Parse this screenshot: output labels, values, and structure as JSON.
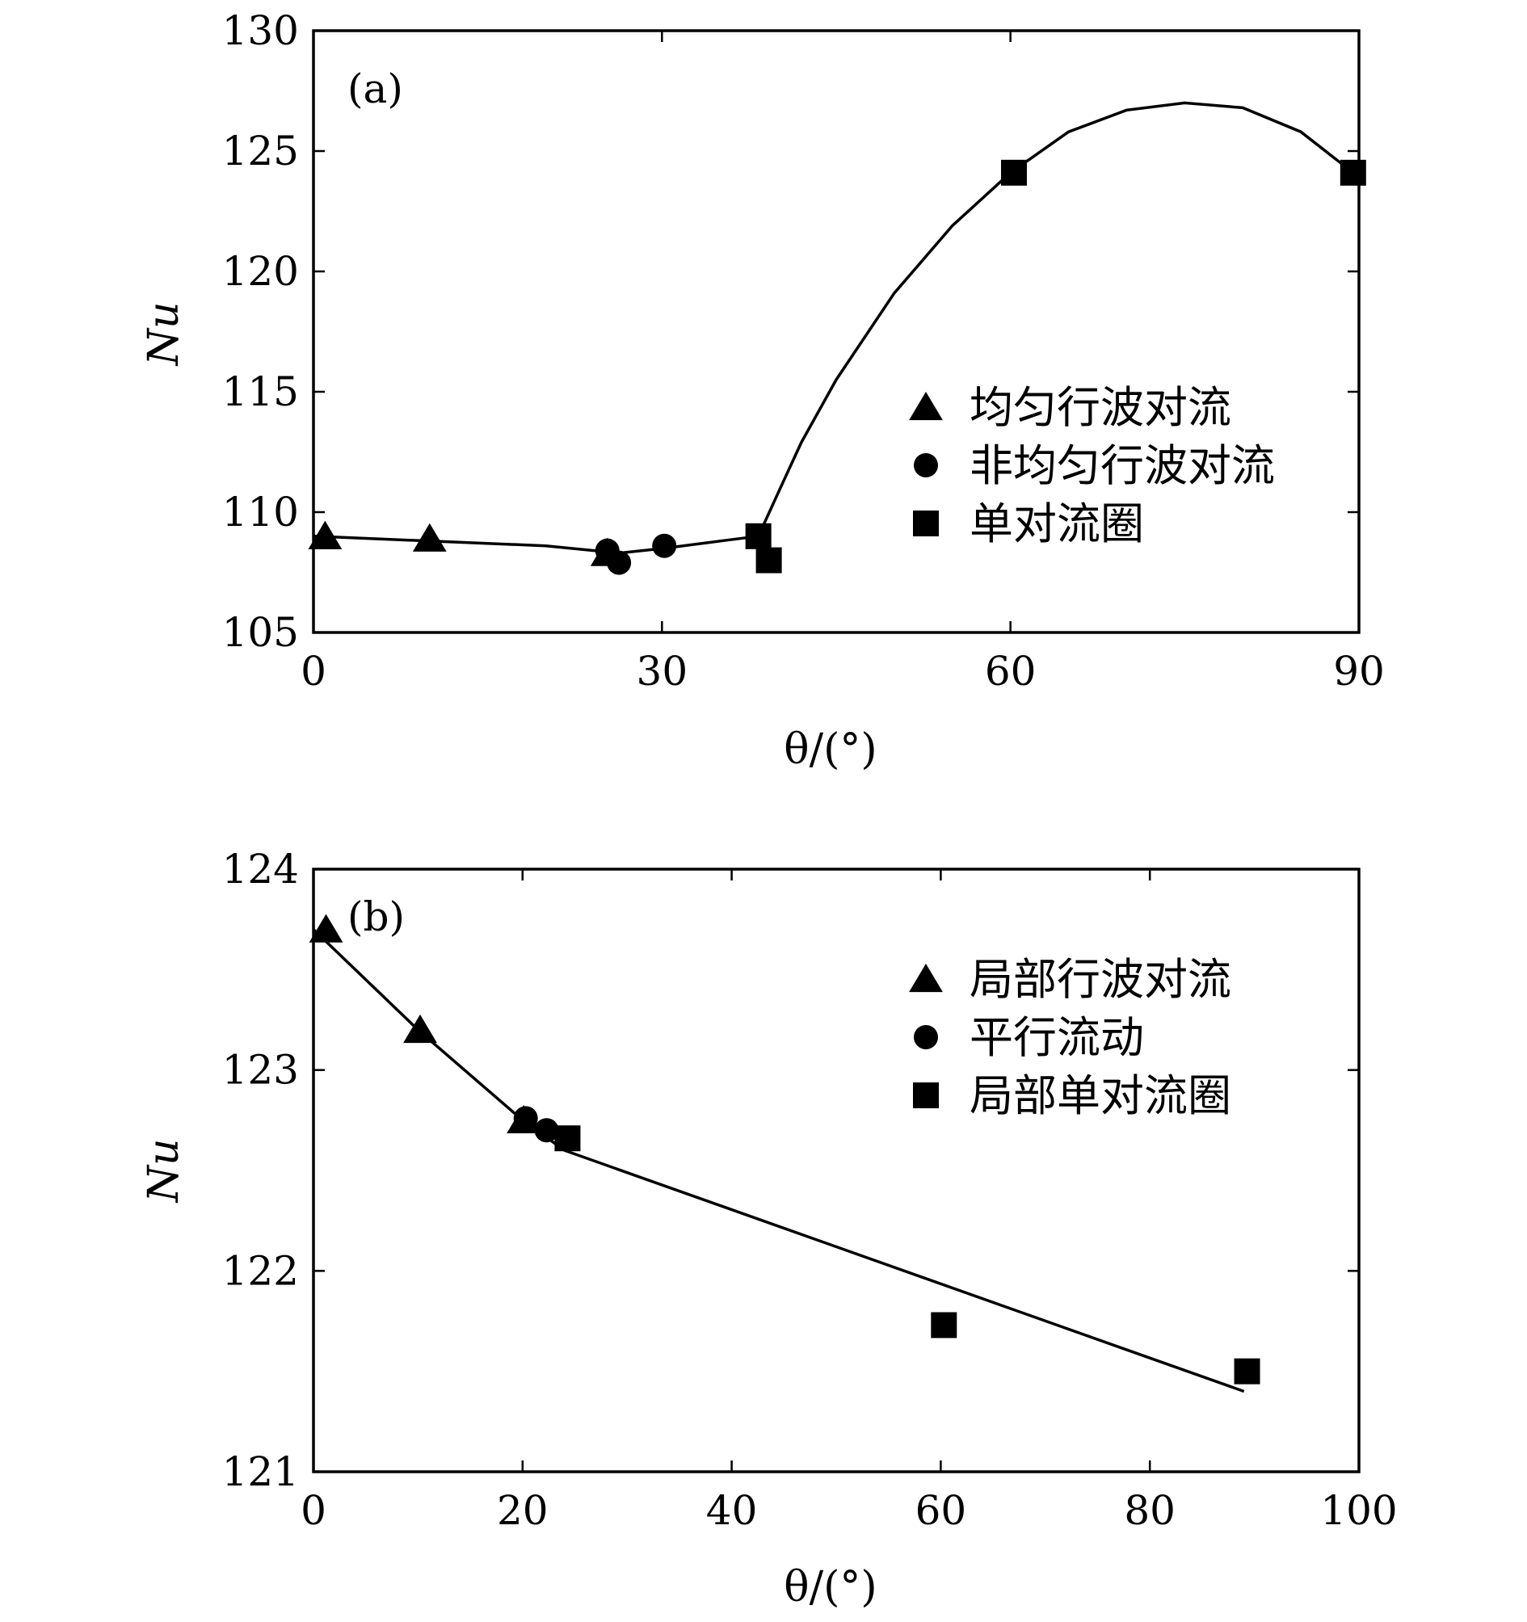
{
  "chart_data": [
    {
      "type": "scatter",
      "panel_label": "(a)",
      "xlabel": "θ/(°)",
      "ylabel": "Nu",
      "xlim": [
        0,
        90
      ],
      "ylim": [
        105,
        130
      ],
      "xticks": [
        0,
        30,
        60,
        90
      ],
      "yticks": [
        105,
        110,
        115,
        120,
        125,
        130
      ],
      "legend_position": "right",
      "series": [
        {
          "name": "均匀行波对流",
          "marker": "triangle",
          "points": [
            [
              1,
              109.0
            ],
            [
              10,
              108.9
            ],
            [
              25.3,
              108.3
            ]
          ]
        },
        {
          "name": "非均匀行波对流",
          "marker": "circle",
          "points": [
            [
              25.3,
              108.4
            ],
            [
              26.3,
              107.9
            ],
            [
              30.2,
              108.6
            ]
          ]
        },
        {
          "name": "单对流圈",
          "marker": "square",
          "points": [
            [
              38.3,
              109.0
            ],
            [
              39.2,
              108.0
            ],
            [
              60.3,
              124.1
            ],
            [
              89.5,
              124.1
            ]
          ]
        }
      ],
      "fit_curve": [
        [
          0,
          109.0
        ],
        [
          10,
          108.8
        ],
        [
          20,
          108.6
        ],
        [
          26.3,
          108.3
        ],
        [
          30.2,
          108.5
        ],
        [
          35,
          108.8
        ],
        [
          38.3,
          109.0
        ],
        [
          40,
          110.8
        ],
        [
          42,
          112.9
        ],
        [
          45,
          115.5
        ],
        [
          50,
          119.1
        ],
        [
          55,
          121.9
        ],
        [
          60,
          124.1
        ],
        [
          65,
          125.8
        ],
        [
          70,
          126.7
        ],
        [
          75,
          127.0
        ],
        [
          80,
          126.8
        ],
        [
          85,
          125.8
        ],
        [
          89.5,
          124.1
        ]
      ]
    },
    {
      "type": "scatter",
      "panel_label": "(b)",
      "xlabel": "θ/(°)",
      "ylabel": "Nu",
      "xlim": [
        0,
        100
      ],
      "ylim": [
        121,
        124
      ],
      "xticks": [
        0,
        20,
        40,
        60,
        80,
        100
      ],
      "yticks": [
        121,
        122,
        123,
        124
      ],
      "legend_position": "top-right",
      "series": [
        {
          "name": "局部行波对流",
          "marker": "triangle",
          "points": [
            [
              1.2,
              123.7
            ],
            [
              10.2,
              123.2
            ],
            [
              20.1,
              122.75
            ]
          ]
        },
        {
          "name": "平行流动",
          "marker": "circle",
          "points": [
            [
              20.3,
              122.76
            ],
            [
              22.3,
              122.7
            ]
          ]
        },
        {
          "name": "局部单对流圈",
          "marker": "square",
          "points": [
            [
              24.3,
              122.66
            ],
            [
              60.3,
              121.73
            ],
            [
              89.3,
              121.5
            ]
          ]
        }
      ],
      "fit_curve": [
        [
          0,
          123.7
        ],
        [
          10,
          123.2
        ],
        [
          20,
          122.75
        ],
        [
          24,
          122.6
        ],
        [
          89,
          121.4
        ]
      ]
    }
  ]
}
